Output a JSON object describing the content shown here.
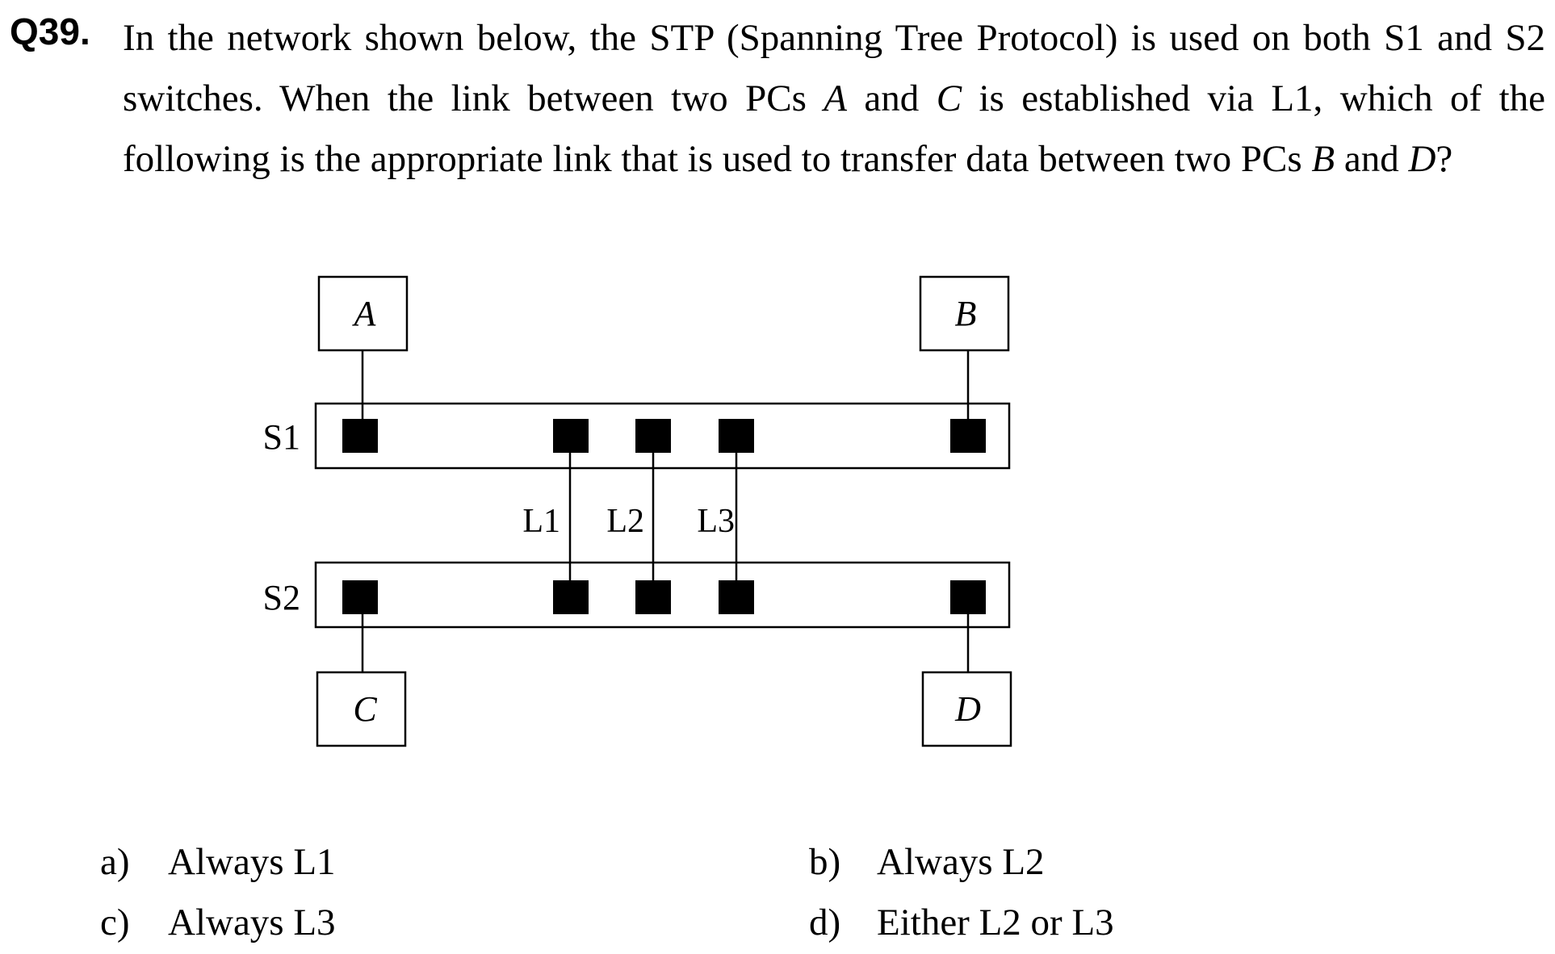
{
  "question": {
    "number": "Q39.",
    "parts": [
      "In the network shown below, the STP (Spanning Tree Protocol) is used on both S1 and S2 switches.    When the link between two PCs ",
      "A",
      " and ",
      "C",
      " is established via L1, which of the following is the appropriate link that is used to transfer data between two PCs ",
      "B",
      " and ",
      "D",
      "?"
    ]
  },
  "diagram": {
    "pcs": {
      "a": "A",
      "b": "B",
      "c": "C",
      "d": "D"
    },
    "switches": {
      "s1": "S1",
      "s2": "S2"
    },
    "links": {
      "l1": "L1",
      "l2": "L2",
      "l3": "L3"
    }
  },
  "options": [
    {
      "letter": "a)",
      "text": "Always L1"
    },
    {
      "letter": "b)",
      "text": "Always L2"
    },
    {
      "letter": "c)",
      "text": "Always L3"
    },
    {
      "letter": "d)",
      "text": "Either L2 or L3"
    }
  ]
}
